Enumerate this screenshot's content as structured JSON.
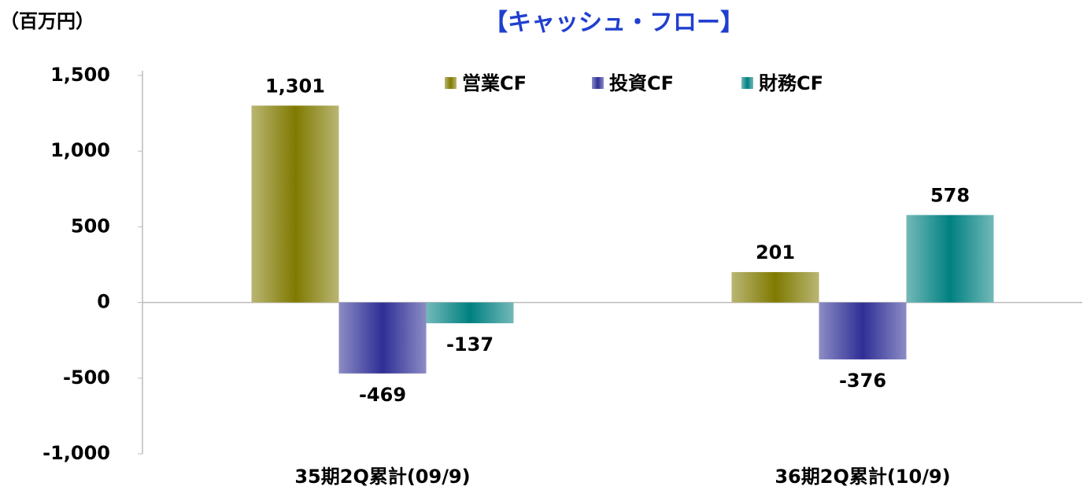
{
  "chart_data": {
    "type": "bar",
    "title": "【キャッシュ・フロー】",
    "y_axis_label": "（百万円）",
    "categories": [
      "35期2Q累計(09/9)",
      "36期2Q累計(10/9)"
    ],
    "series": [
      {
        "name": "営業CF",
        "color": "#7f7a00",
        "values": [
          1301,
          201
        ],
        "value_labels": [
          "1,301",
          "201"
        ]
      },
      {
        "name": "投資CF",
        "color": "#2e2e96",
        "values": [
          -469,
          -376
        ],
        "value_labels": [
          "-469",
          "-376"
        ]
      },
      {
        "name": "財務CF",
        "color": "#008080",
        "values": [
          -137,
          578
        ],
        "value_labels": [
          "-137",
          "578"
        ]
      }
    ],
    "ylim": [
      -1000,
      1500
    ],
    "yticks": [
      {
        "value": -1000,
        "label": "-1,000"
      },
      -500,
      0,
      500,
      {
        "value": 1000,
        "label": "1,000"
      },
      {
        "value": 1500,
        "label": "1,500"
      }
    ],
    "grid": false,
    "legend": "top"
  }
}
